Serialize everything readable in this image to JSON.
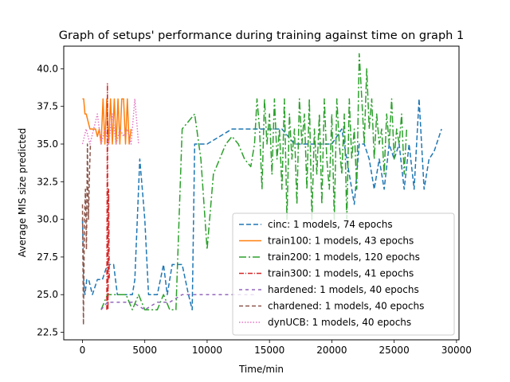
{
  "chart_data": {
    "type": "line",
    "title": "Graph of setups' performance during training against time on graph 1",
    "xlabel": "Time/min",
    "ylabel": "Average MIS size predicted",
    "xlim": [
      -1500,
      30200
    ],
    "ylim": [
      22,
      41.5
    ],
    "xticks": [
      0,
      5000,
      10000,
      15000,
      20000,
      25000,
      30000
    ],
    "xtick_labels": [
      "0",
      "5000",
      "10000",
      "15000",
      "20000",
      "25000",
      "30000"
    ],
    "yticks": [
      22.5,
      25.0,
      27.5,
      30.0,
      32.5,
      35.0,
      37.5,
      40.0
    ],
    "ytick_labels": [
      "22.5",
      "25.0",
      "27.5",
      "30.0",
      "32.5",
      "35.0",
      "37.5",
      "40.0"
    ],
    "grid": false,
    "legend_position": "lower-right",
    "series": [
      {
        "name": "cinc: 1 models, 74 epochs",
        "color": "#1f77b4",
        "dash": "6,3",
        "x": [
          0,
          100,
          200,
          350,
          500,
          800,
          1200,
          1600,
          2000,
          2500,
          2800,
          3200,
          3500,
          4000,
          4200,
          4600,
          4800,
          5000,
          5300,
          5600,
          6000,
          6500,
          6800,
          7200,
          7500,
          8000,
          8500,
          8800,
          9000,
          10000,
          11000,
          12000,
          13000,
          14000,
          15000,
          16000,
          17000,
          18000,
          19000,
          20000,
          20800,
          21400,
          21800,
          22200,
          22600,
          23000,
          23400,
          23800,
          24200,
          24600,
          25000,
          25400,
          25800,
          26200,
          26600,
          27000,
          27400,
          27800,
          28200,
          28800
        ],
        "y": [
          30,
          26,
          25,
          26,
          26,
          25,
          26,
          26,
          27,
          27,
          25,
          25,
          25,
          25,
          26,
          34,
          32,
          30,
          25,
          25,
          25,
          27,
          25,
          27,
          27,
          27,
          25,
          24,
          35,
          35,
          35.5,
          36,
          36,
          36,
          36,
          36,
          35,
          35,
          35,
          35,
          36,
          33,
          31,
          35,
          35,
          34,
          32,
          34,
          32,
          35,
          34,
          35,
          32,
          35,
          32,
          38,
          32,
          34,
          34.5,
          36
        ]
      },
      {
        "name": "train100: 1 models, 43 epochs",
        "color": "#ff7f0e",
        "dash": "",
        "x": [
          0,
          100,
          200,
          300,
          450,
          600,
          750,
          900,
          1050,
          1200,
          1350,
          1500,
          1650,
          1800,
          1950,
          2100,
          2250,
          2400,
          2550,
          2700,
          2850,
          3000,
          3150,
          3300,
          3450,
          3600,
          3750,
          3900
        ],
        "y": [
          38,
          38,
          37,
          37,
          36.5,
          36,
          36,
          36,
          36,
          35.5,
          36,
          35,
          38,
          35,
          38,
          35,
          38,
          35,
          38,
          35,
          38,
          35,
          38,
          38,
          35,
          38,
          35,
          36
        ]
      },
      {
        "name": "train200: 1 models, 120 epochs",
        "color": "#2ca02c",
        "dash": "9,3,2,3",
        "x": [
          1500,
          2000,
          2500,
          3000,
          3500,
          4000,
          4500,
          5000,
          5500,
          6000,
          6500,
          7000,
          7500,
          8000,
          8500,
          9000,
          9500,
          10000,
          10500,
          11000,
          11500,
          12000,
          12500,
          13000,
          13500,
          13800,
          14000,
          14200,
          14400,
          14600,
          14800,
          15000,
          15200,
          15400,
          15600,
          15800,
          16000,
          16200,
          16400,
          16600,
          16800,
          17000,
          17200,
          17400,
          17600,
          17800,
          18000,
          18200,
          18400,
          18600,
          18800,
          19000,
          19200,
          19400,
          19600,
          19800,
          20000,
          20200,
          20400,
          20600,
          20800,
          21000,
          21200,
          21400,
          21600,
          21800,
          22000,
          22200,
          22400,
          22600,
          22800,
          23000,
          23200,
          23400,
          23600,
          23800,
          24000,
          24200,
          24400,
          24600,
          24800,
          25000,
          25200,
          25400,
          25600,
          25800,
          26000
        ],
        "y": [
          24,
          25,
          25,
          25,
          25,
          24,
          25,
          24,
          24,
          24,
          25,
          24,
          24,
          36,
          36.5,
          37,
          34,
          28,
          33,
          34,
          35,
          35.5,
          35,
          34,
          33.5,
          35,
          38,
          36,
          32,
          38,
          35,
          37,
          33,
          38,
          34,
          36,
          32,
          38,
          30,
          37,
          34,
          36,
          31,
          38,
          35,
          37,
          32,
          38,
          30,
          36,
          33,
          37,
          31,
          38,
          34,
          32,
          37,
          30,
          38,
          35,
          33,
          37,
          30,
          38,
          34,
          36,
          32,
          41,
          38,
          35,
          40,
          36,
          38,
          34,
          37,
          35,
          36,
          33,
          37,
          35,
          38,
          34,
          36,
          35,
          37,
          33,
          36
        ]
      },
      {
        "name": "train300: 1 models, 41 epochs",
        "color": "#d62728",
        "dash": "6,2,1,2",
        "x": [
          1950,
          2000,
          2050,
          2100,
          2150
        ],
        "y": [
          24,
          39,
          24,
          32,
          26
        ]
      },
      {
        "name": "hardened: 1 models, 40 epochs",
        "color": "#9467bd",
        "dash": "4,4",
        "x": [
          1500,
          2000,
          3000,
          4000,
          5000,
          6000,
          7000,
          8000,
          9000,
          10000,
          11000,
          12000,
          13000,
          14000
        ],
        "y": [
          24,
          24.5,
          24.5,
          24.5,
          24,
          24.5,
          24.5,
          25,
          25,
          25,
          25,
          25,
          25,
          25
        ]
      },
      {
        "name": "chardened: 1 models, 40 epochs",
        "color": "#8c564b",
        "dash": "5,3",
        "x": [
          0,
          80,
          160,
          240,
          320,
          400,
          480,
          560,
          640
        ],
        "y": [
          31,
          23,
          30,
          32,
          28,
          35,
          30,
          33,
          35
        ]
      },
      {
        "name": "dynUCB: 1 models, 40 epochs",
        "color": "#e377c2",
        "dash": "1.5,2",
        "x": [
          0,
          300,
          600,
          900,
          1200,
          1500,
          1800,
          2100,
          2400,
          2700,
          3000,
          3300,
          3600,
          3900,
          4200,
          4500
        ],
        "y": [
          35,
          36,
          35,
          36,
          37,
          35,
          36,
          35,
          37,
          35,
          36,
          35.5,
          36,
          35,
          38,
          35
        ]
      }
    ]
  }
}
